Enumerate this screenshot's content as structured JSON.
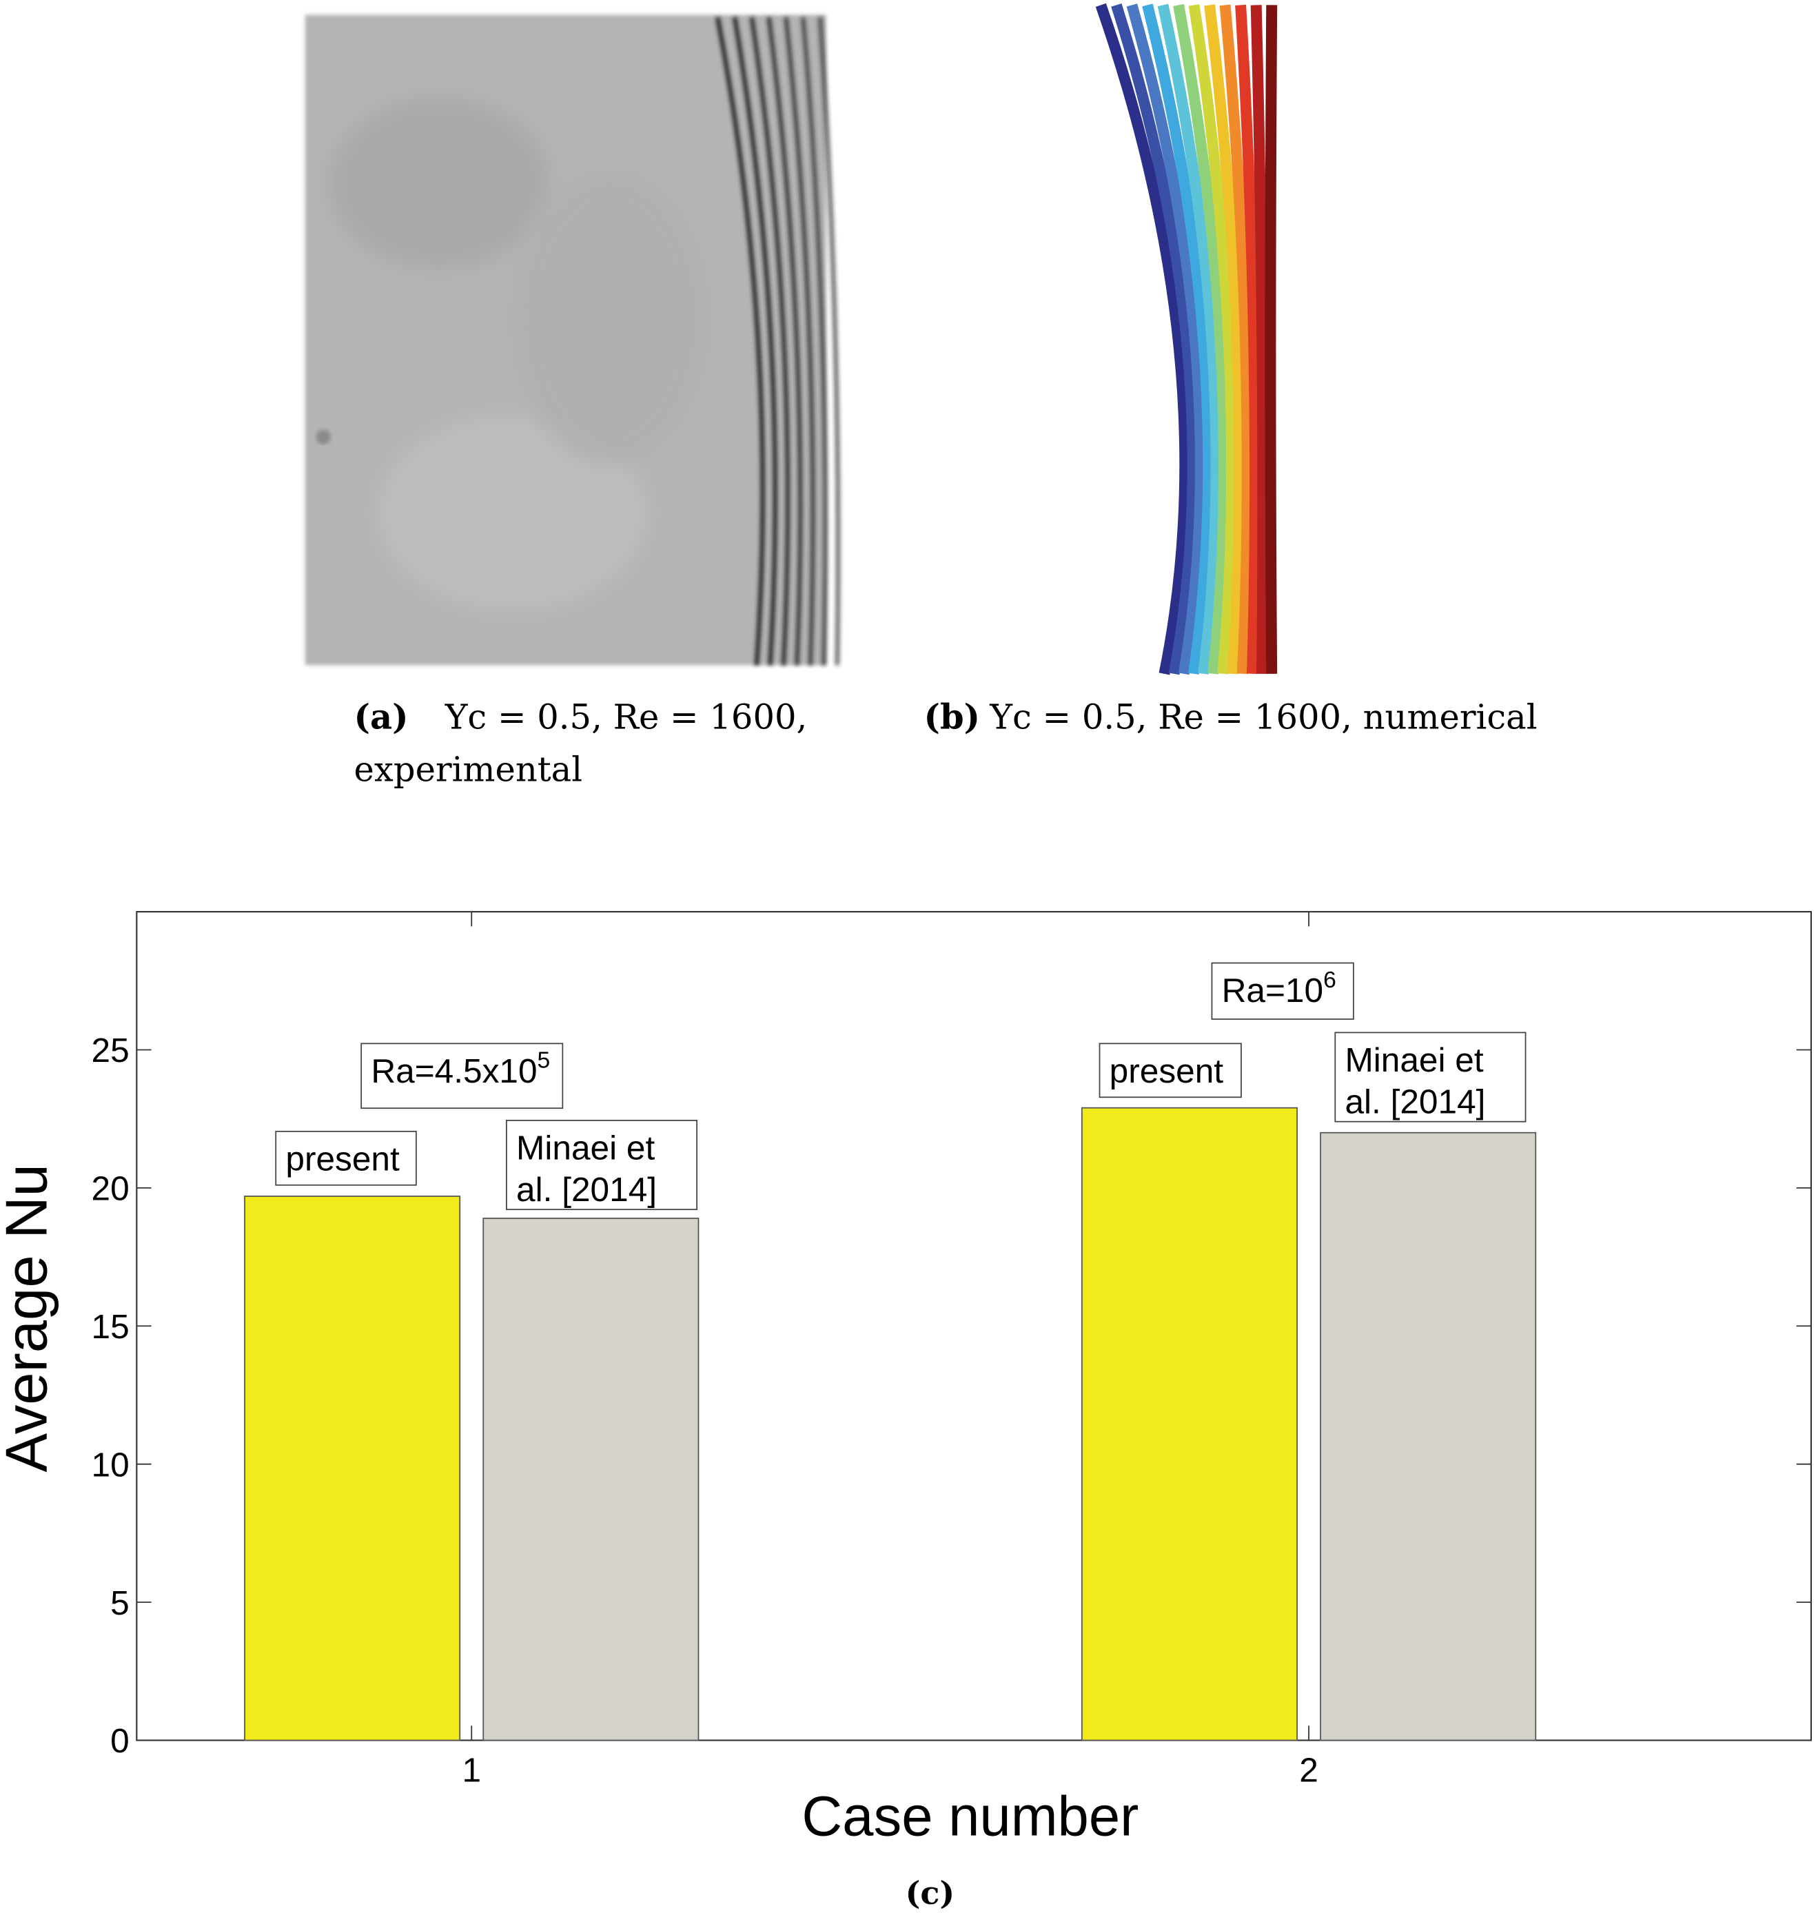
{
  "panel_a": {
    "label": "(a)",
    "caption_line1": "Yc = 0.5, Re = 1600,",
    "caption_line2": "experimental"
  },
  "panel_b": {
    "label": "(b)",
    "caption": "Yc = 0.5, Re = 1600, numerical",
    "contour_colors": [
      "#2b2f8a",
      "#3a4fa6",
      "#4a78c2",
      "#3fa9df",
      "#5dc3d8",
      "#8fd07a",
      "#cfd63a",
      "#f0c22a",
      "#f08a2a",
      "#e03a26",
      "#b3201e",
      "#7a1310"
    ]
  },
  "panel_c": {
    "label": "(c)"
  },
  "chart_data": {
    "type": "bar",
    "xlabel": "Case number",
    "ylabel": "Average Nu",
    "categories": [
      "1",
      "2"
    ],
    "xlim": [
      0.6,
      2.6
    ],
    "ylim": [
      0,
      30
    ],
    "yticks": [
      0,
      5,
      10,
      15,
      20,
      25
    ],
    "grid": false,
    "series": [
      {
        "name": "present",
        "color": "#f2eb1b",
        "values": [
          19.7,
          22.9
        ]
      },
      {
        "name": "Minaei et al. [2014]",
        "color": "#d5d2ca",
        "values": [
          18.9,
          22.0
        ]
      }
    ],
    "annotations": [
      {
        "base": "Ra=4.5x10",
        "sup": "5"
      },
      {
        "base": "Ra=10",
        "sup": "6"
      }
    ],
    "bar_labels": [
      [
        "present",
        "Minaei et",
        "al. [2014]"
      ],
      [
        "present",
        "Minaei et",
        "al. [2014]"
      ]
    ]
  }
}
